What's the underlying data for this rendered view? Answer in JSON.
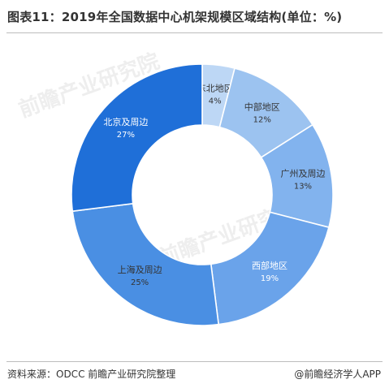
{
  "header": {
    "title": "图表11：2019年全国数据中心机架规模区域结构(单位：%)"
  },
  "footer": {
    "source": "资料来源：ODCC 前瞻产业研究院整理",
    "brand": "@前瞻经济学人APP"
  },
  "watermark": {
    "text": "前瞻产业研究院"
  },
  "chart_data": {
    "type": "pie",
    "variant": "donut",
    "title": "图表11：2019年全国数据中心机架规模区域结构(单位：%)",
    "unit": "%",
    "start_angle_deg": 0,
    "direction": "clockwise",
    "legend": "none",
    "slices": [
      {
        "label": "东北地区",
        "value": 4,
        "value_label": "4%",
        "color": "#bdd7f5",
        "text_color": "#333333"
      },
      {
        "label": "中部地区",
        "value": 12,
        "value_label": "12%",
        "color": "#9cc3f0",
        "text_color": "#333333"
      },
      {
        "label": "广州及周边",
        "value": 13,
        "value_label": "13%",
        "color": "#82b3ee",
        "text_color": "#333333"
      },
      {
        "label": "西部地区",
        "value": 19,
        "value_label": "19%",
        "color": "#6aa3ea",
        "text_color": "#ffffff"
      },
      {
        "label": "上海及周边",
        "value": 25,
        "value_label": "25%",
        "color": "#4a8fe3",
        "text_color": "#333333"
      },
      {
        "label": "北京及周边",
        "value": 27,
        "value_label": "27%",
        "color": "#1f6fd8",
        "text_color": "#ffffff"
      }
    ]
  }
}
